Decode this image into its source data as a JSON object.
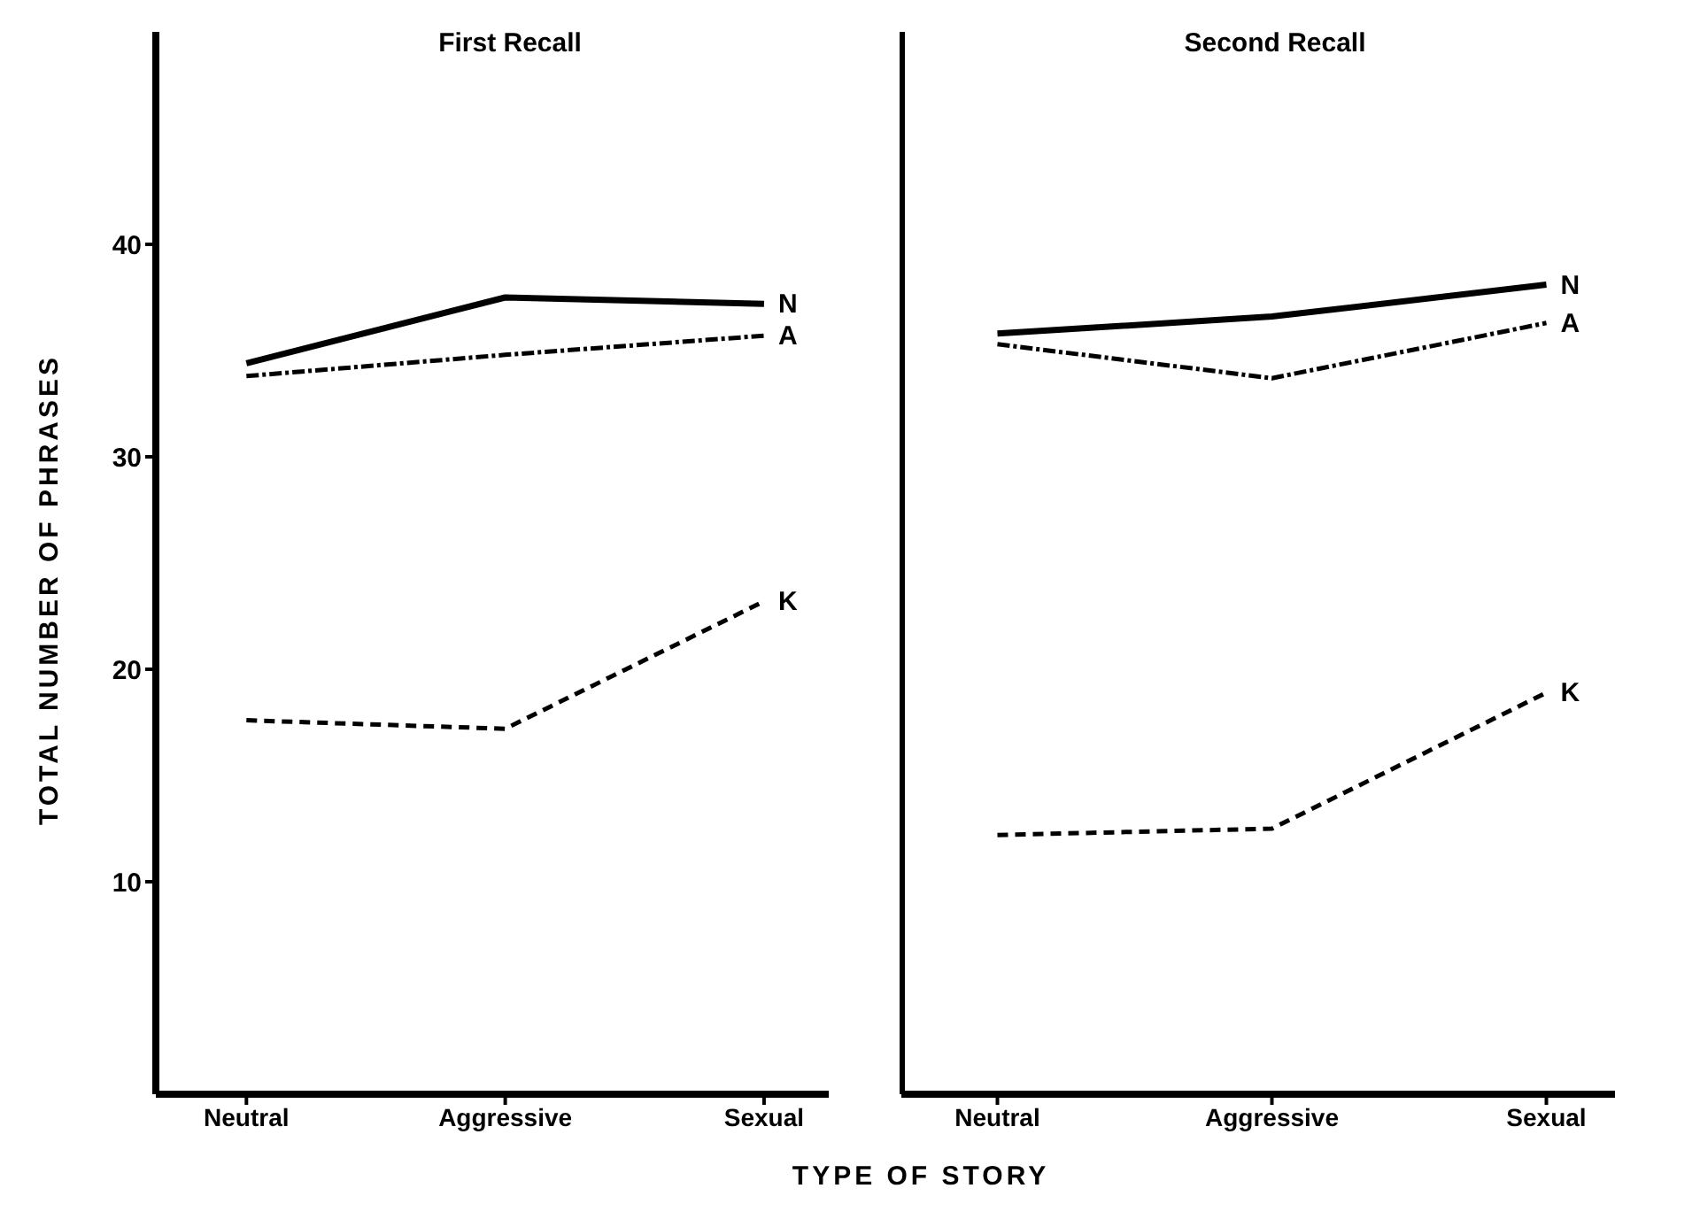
{
  "chart_data": [
    {
      "type": "line",
      "title": "First Recall",
      "xlabel": "TYPE OF STORY",
      "ylabel": "TOTAL NUMBER OF PHRASES",
      "categories": [
        "Neutral",
        "Aggressive",
        "Sexual"
      ],
      "ylim": [
        0,
        50
      ],
      "yticks": [
        10,
        20,
        30,
        40
      ],
      "grid": false,
      "legend": false,
      "marker": "none",
      "series": [
        {
          "name": "N",
          "color": "#000000",
          "line_style": "solid",
          "values": [
            34.4,
            37.5,
            37.2
          ]
        },
        {
          "name": "A",
          "color": "#000000",
          "line_style": "dotted",
          "values": [
            33.8,
            34.8,
            35.7
          ]
        },
        {
          "name": "K",
          "color": "#000000",
          "line_style": "dashed",
          "values": [
            17.6,
            17.2,
            23.2
          ]
        }
      ]
    },
    {
      "type": "line",
      "title": "Second Recall",
      "categories": [
        "Neutral",
        "Aggressive",
        "Sexual"
      ],
      "ylim": [
        0,
        50
      ],
      "yticks": [
        10,
        20,
        30,
        40
      ],
      "tick_labels": "x",
      "grid": false,
      "legend": false,
      "marker": "none",
      "series": [
        {
          "name": "N",
          "color": "#000000",
          "line_style": "solid",
          "values": [
            35.8,
            36.6,
            38.1
          ]
        },
        {
          "name": "A",
          "color": "#000000",
          "line_style": "dotted",
          "values": [
            35.3,
            33.7,
            36.3
          ]
        },
        {
          "name": "K",
          "color": "#000000",
          "line_style": "dashed",
          "values": [
            12.2,
            12.5,
            18.9
          ]
        }
      ]
    }
  ]
}
